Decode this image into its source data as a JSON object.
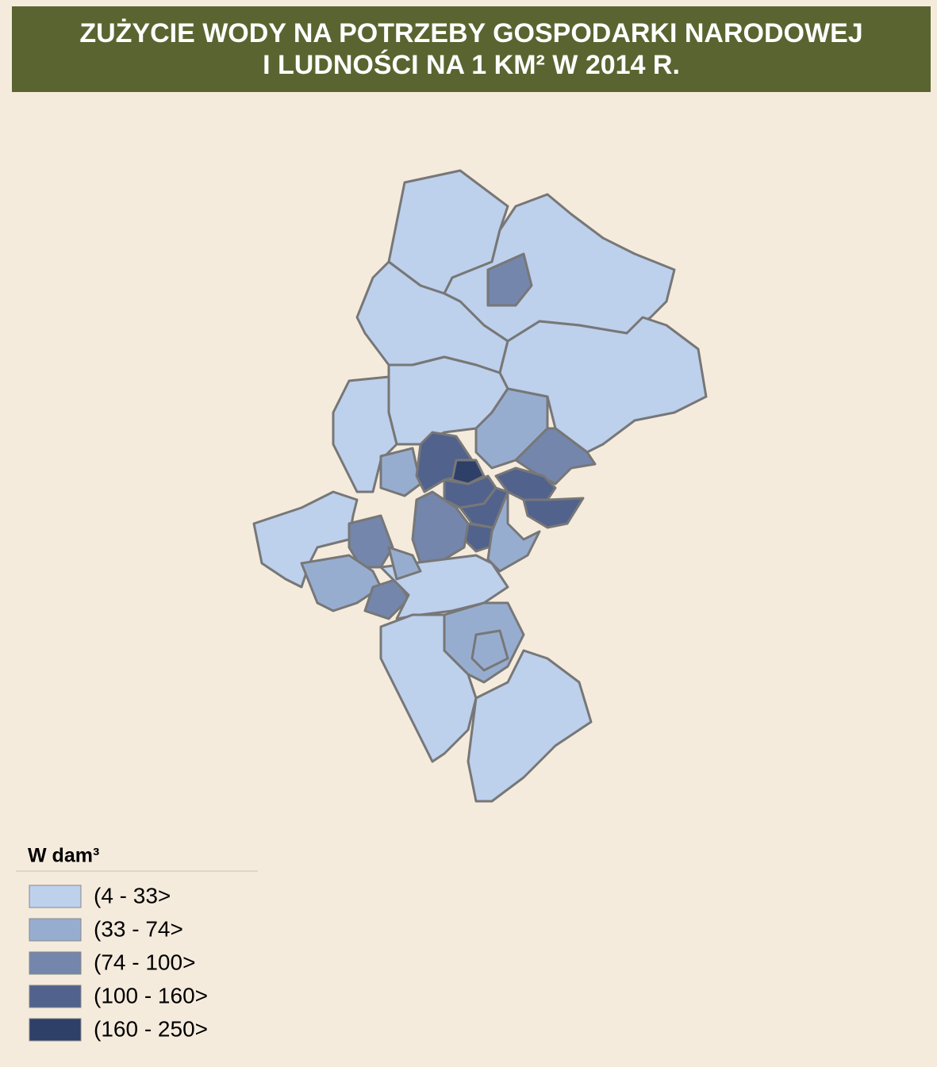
{
  "title": [
    "ZUŻYCIE WODY NA POTRZEBY GOSPODARKI NARODOWEJ",
    "I LUDNOŚCI NA 1 KM²  W 2014 R."
  ],
  "legend": {
    "title": "W dam³",
    "items": [
      {
        "label": "(4 - 33>",
        "color": "#bdd0ec"
      },
      {
        "label": "(33 - 74>",
        "color": "#97add0"
      },
      {
        "label": "(74 - 100>",
        "color": "#7486ab"
      },
      {
        "label": "(100 - 160>",
        "color": "#51628d"
      },
      {
        "label": "(160 - 250>",
        "color": "#2e3f68"
      }
    ]
  }
}
